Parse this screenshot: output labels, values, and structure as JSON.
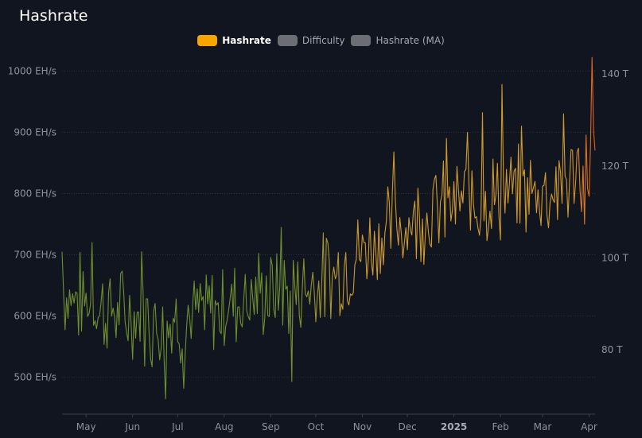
{
  "title": "Hashrate",
  "legend": [
    {
      "label": "Hashrate",
      "color": "#f7a600",
      "active": true
    },
    {
      "label": "Difficulty",
      "color": "#6b6e75",
      "active": false
    },
    {
      "label": "Hashrate (MA)",
      "color": "#6b6e75",
      "active": false
    }
  ],
  "colors": {
    "background": "#11151f",
    "grid": "#2a2f3a",
    "axis_text": "#8e929a",
    "line_start": "#6e8f2e",
    "line_mid": "#d09a2a",
    "line_end": "#e0601e"
  },
  "chart_data": {
    "type": "line",
    "title": "Hashrate",
    "x_range": [
      "2024-04-15",
      "2025-04-05"
    ],
    "x_ticks": [
      {
        "label": "May",
        "date": "2024-05-01",
        "bold": false
      },
      {
        "label": "Jun",
        "date": "2024-06-01",
        "bold": false
      },
      {
        "label": "Jul",
        "date": "2024-07-01",
        "bold": false
      },
      {
        "label": "Aug",
        "date": "2024-08-01",
        "bold": false
      },
      {
        "label": "Sep",
        "date": "2024-09-01",
        "bold": false
      },
      {
        "label": "Oct",
        "date": "2024-10-01",
        "bold": false
      },
      {
        "label": "Nov",
        "date": "2024-11-01",
        "bold": false
      },
      {
        "label": "Dec",
        "date": "2024-12-01",
        "bold": false
      },
      {
        "label": "2025",
        "date": "2025-01-01",
        "bold": true
      },
      {
        "label": "Feb",
        "date": "2025-02-01",
        "bold": false
      },
      {
        "label": "Mar",
        "date": "2025-03-01",
        "bold": false
      },
      {
        "label": "Apr",
        "date": "2025-04-01",
        "bold": false
      }
    ],
    "y_left": {
      "unit": "EH/s",
      "range": [
        440,
        1025
      ],
      "ticks": [
        {
          "label": "500 EH/s",
          "value": 500
        },
        {
          "label": "600 EH/s",
          "value": 600
        },
        {
          "label": "700 EH/s",
          "value": 700
        },
        {
          "label": "800 EH/s",
          "value": 800
        },
        {
          "label": "900 EH/s",
          "value": 900
        },
        {
          "label": "1000 EH/s",
          "value": 1000
        }
      ]
    },
    "y_right": {
      "unit": "T",
      "range": [
        66,
        144
      ],
      "ticks": [
        {
          "label": "80 T",
          "value": 80
        },
        {
          "label": "100 T",
          "value": 100
        },
        {
          "label": "120 T",
          "value": 120
        },
        {
          "label": "140 T",
          "value": 140
        }
      ]
    },
    "series": [
      {
        "name": "Hashrate",
        "trend": [
          [
            "2024-04-15",
            640
          ],
          [
            "2024-05-15",
            610
          ],
          [
            "2024-06-15",
            590
          ],
          [
            "2024-07-15",
            598
          ],
          [
            "2024-08-15",
            632
          ],
          [
            "2024-09-15",
            640
          ],
          [
            "2024-10-15",
            670
          ],
          [
            "2024-11-15",
            735
          ],
          [
            "2024-12-15",
            770
          ],
          [
            "2025-01-15",
            790
          ],
          [
            "2025-02-15",
            800
          ],
          [
            "2025-03-15",
            810
          ],
          [
            "2025-04-05",
            860
          ]
        ],
        "peaks": [
          [
            "2024-04-15",
            705
          ],
          [
            "2024-05-05",
            720
          ],
          [
            "2024-06-07",
            705
          ],
          [
            "2024-06-23",
            465
          ],
          [
            "2024-07-05",
            482
          ],
          [
            "2024-09-08",
            745
          ],
          [
            "2024-09-15",
            493
          ],
          [
            "2024-11-22",
            868
          ],
          [
            "2024-12-27",
            890
          ],
          [
            "2025-01-10",
            900
          ],
          [
            "2025-01-20",
            932
          ],
          [
            "2025-02-02",
            978
          ],
          [
            "2025-02-15",
            910
          ],
          [
            "2025-03-15",
            930
          ],
          [
            "2025-03-29",
            750
          ],
          [
            "2025-04-03",
            1022
          ]
        ]
      }
    ],
    "grid": true,
    "legend_position": "top-center"
  }
}
